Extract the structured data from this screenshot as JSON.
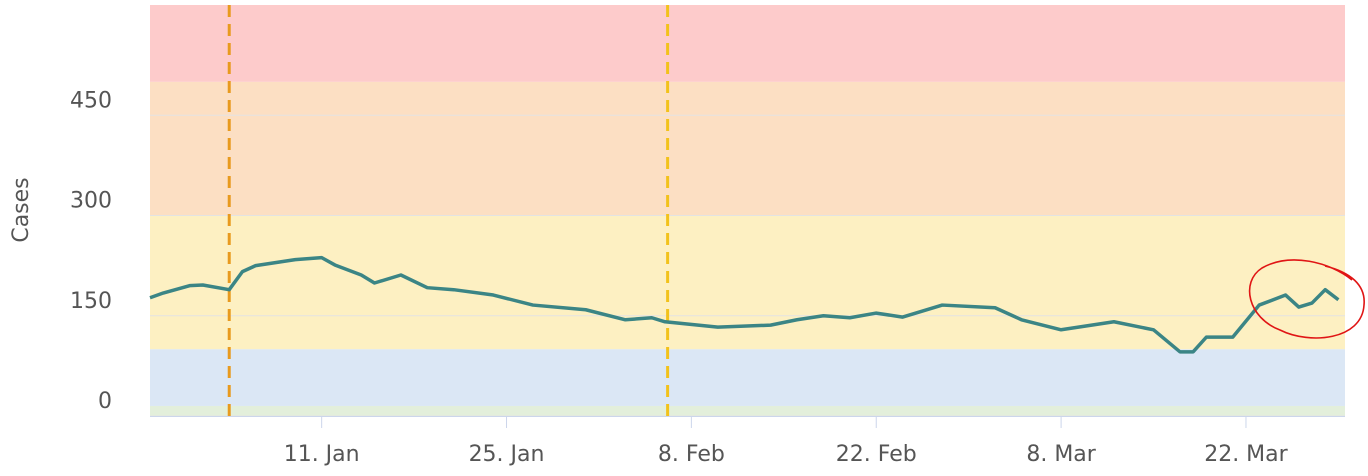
{
  "chart_data": {
    "type": "line",
    "y_axis_label": "Cases",
    "x": [
      -2,
      -1,
      1,
      2,
      4,
      5,
      6,
      9,
      11,
      12,
      14,
      15,
      17,
      19,
      21,
      24,
      27,
      31,
      34,
      36,
      37,
      41,
      45,
      47,
      49,
      51,
      53,
      55,
      58,
      62,
      64,
      67,
      71,
      74,
      76,
      77,
      78,
      80,
      82,
      84,
      85,
      86,
      87,
      88
    ],
    "series": [
      {
        "name": "Cases",
        "color": "#3b8585",
        "values": [
          177,
          184,
          195,
          196,
          189,
          216,
          225,
          234,
          237,
          226,
          211,
          199,
          211,
          192,
          189,
          181,
          166,
          159,
          144,
          147,
          141,
          133,
          136,
          144,
          150,
          147,
          154,
          148,
          166,
          162,
          144,
          129,
          141,
          129,
          96,
          96,
          118,
          118,
          166,
          181,
          163,
          169,
          189,
          174
        ]
      }
    ],
    "xlim": [
      -2,
      88.5
    ],
    "xticks": [
      {
        "value": 11,
        "label": "11. Jan"
      },
      {
        "value": 25,
        "label": "25. Jan"
      },
      {
        "value": 39,
        "label": "8. Feb"
      },
      {
        "value": 53,
        "label": "22. Feb"
      },
      {
        "value": 67,
        "label": "8. Mar"
      },
      {
        "value": 81,
        "label": "22. Mar"
      }
    ],
    "ylim": [
      0,
      615
    ],
    "yticks": [
      0,
      150,
      300,
      450
    ],
    "grid": true,
    "bands": [
      {
        "from": 0,
        "to": 15,
        "color": "#e3efdb"
      },
      {
        "from": 15,
        "to": 100,
        "color": "#dbe7f5"
      },
      {
        "from": 100,
        "to": 300,
        "color": "#fdf0c2"
      },
      {
        "from": 300,
        "to": 500,
        "color": "#fcdfc3"
      },
      {
        "from": 500,
        "to": 615,
        "color": "#fdcbcb"
      }
    ],
    "plot_lines": [
      {
        "value": 4,
        "color": "#e89a1e"
      },
      {
        "value": 37.2,
        "color": "#f2c21b"
      }
    ]
  }
}
